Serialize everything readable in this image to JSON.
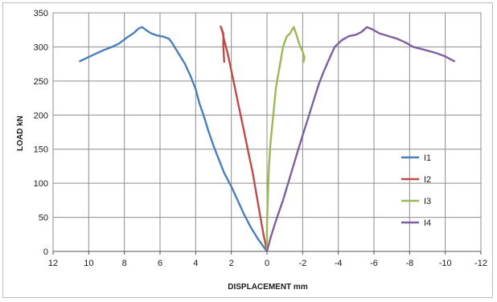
{
  "chart_data": {
    "type": "line",
    "title": "",
    "xlabel": "DISPLACEMENT mm",
    "ylabel": "LOAD kN",
    "xlim": [
      12,
      -12
    ],
    "ylim": [
      0,
      350
    ],
    "x_reversed": true,
    "xticks": [
      12,
      10,
      8,
      6,
      4,
      2,
      0,
      -2,
      -4,
      -6,
      -8,
      -10,
      -12
    ],
    "yticks": [
      0,
      50,
      100,
      150,
      200,
      250,
      300,
      350
    ],
    "grid": true,
    "legend_position": "right",
    "series": [
      {
        "name": "I1",
        "color": "#4a7ebb",
        "points": [
          [
            0,
            0
          ],
          [
            0.5,
            18
          ],
          [
            0.9,
            35
          ],
          [
            1.3,
            55
          ],
          [
            1.7,
            78
          ],
          [
            2.0,
            95
          ],
          [
            2.4,
            115
          ],
          [
            2.7,
            135
          ],
          [
            3.0,
            155
          ],
          [
            3.3,
            178
          ],
          [
            3.5,
            195
          ],
          [
            3.8,
            218
          ],
          [
            4.0,
            238
          ],
          [
            4.3,
            258
          ],
          [
            4.6,
            275
          ],
          [
            5.0,
            292
          ],
          [
            5.3,
            305
          ],
          [
            5.5,
            312
          ],
          [
            5.8,
            315
          ],
          [
            6.2,
            317
          ],
          [
            6.5,
            320
          ],
          [
            6.8,
            325
          ],
          [
            7.0,
            329
          ],
          [
            7.2,
            327
          ],
          [
            7.5,
            320
          ],
          [
            7.9,
            313
          ],
          [
            8.3,
            305
          ],
          [
            8.7,
            300
          ],
          [
            9.2,
            295
          ],
          [
            9.7,
            289
          ],
          [
            10.5,
            279
          ]
        ]
      },
      {
        "name": "I2",
        "color": "#be4b48",
        "points": [
          [
            0,
            0
          ],
          [
            0.2,
            25
          ],
          [
            0.4,
            55
          ],
          [
            0.6,
            85
          ],
          [
            0.8,
            115
          ],
          [
            1.0,
            140
          ],
          [
            1.2,
            165
          ],
          [
            1.4,
            190
          ],
          [
            1.6,
            215
          ],
          [
            1.8,
            240
          ],
          [
            2.0,
            265
          ],
          [
            2.2,
            290
          ],
          [
            2.4,
            310
          ],
          [
            2.5,
            322
          ],
          [
            2.6,
            330
          ],
          [
            2.45,
            320
          ],
          [
            2.45,
            300
          ],
          [
            2.4,
            278
          ]
        ]
      },
      {
        "name": "I3",
        "color": "#98b954",
        "points": [
          [
            0,
            0
          ],
          [
            0,
            40
          ],
          [
            -0.05,
            80
          ],
          [
            -0.1,
            120
          ],
          [
            -0.2,
            160
          ],
          [
            -0.35,
            200
          ],
          [
            -0.5,
            240
          ],
          [
            -0.7,
            270
          ],
          [
            -0.9,
            300
          ],
          [
            -1.1,
            315
          ],
          [
            -1.3,
            320
          ],
          [
            -1.4,
            325
          ],
          [
            -1.5,
            329
          ],
          [
            -1.65,
            318
          ],
          [
            -1.8,
            305
          ],
          [
            -2.0,
            293
          ],
          [
            -2.1,
            285
          ],
          [
            -2.05,
            278
          ]
        ]
      },
      {
        "name": "I4",
        "color": "#7d60a0",
        "points": [
          [
            0,
            0
          ],
          [
            -0.2,
            20
          ],
          [
            -0.5,
            45
          ],
          [
            -0.9,
            75
          ],
          [
            -1.3,
            110
          ],
          [
            -1.7,
            145
          ],
          [
            -2.0,
            170
          ],
          [
            -2.3,
            195
          ],
          [
            -2.6,
            220
          ],
          [
            -2.9,
            245
          ],
          [
            -3.2,
            265
          ],
          [
            -3.5,
            283
          ],
          [
            -3.8,
            300
          ],
          [
            -4.2,
            310
          ],
          [
            -4.6,
            316
          ],
          [
            -5.0,
            318
          ],
          [
            -5.3,
            322
          ],
          [
            -5.6,
            329
          ],
          [
            -5.9,
            326
          ],
          [
            -6.3,
            320
          ],
          [
            -6.8,
            316
          ],
          [
            -7.3,
            312
          ],
          [
            -7.8,
            306
          ],
          [
            -8.2,
            300
          ],
          [
            -8.8,
            296
          ],
          [
            -9.5,
            291
          ],
          [
            -10.0,
            286
          ],
          [
            -10.5,
            279
          ]
        ]
      }
    ]
  }
}
